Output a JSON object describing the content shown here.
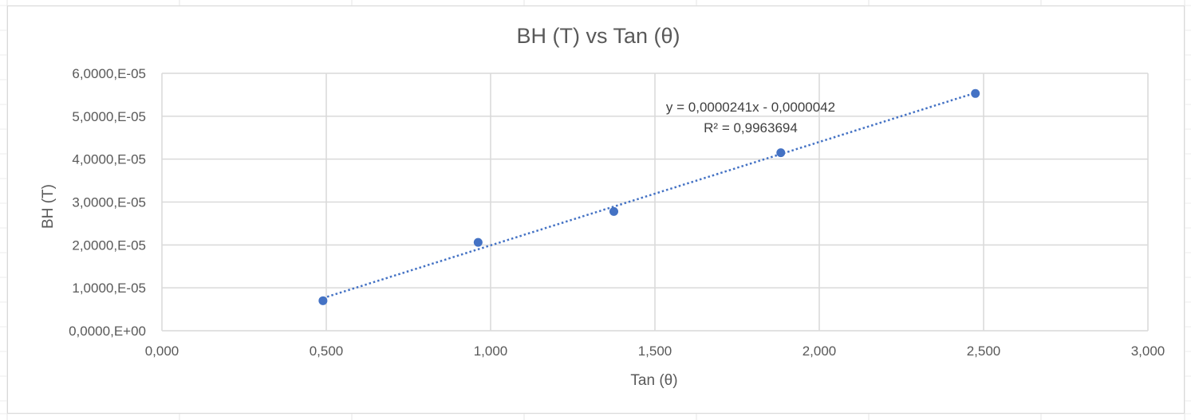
{
  "chart_data": {
    "type": "scatter",
    "title": "BH (T) vs Tan (θ)",
    "xlabel": "Tan (θ)",
    "ylabel": "BH (T)",
    "xlim": [
      0,
      3
    ],
    "ylim": [
      0,
      6e-05
    ],
    "x_ticks": [
      "0,000",
      "0,500",
      "1,000",
      "1,500",
      "2,000",
      "2,500",
      "3,000"
    ],
    "y_ticks": [
      "0,0000,E+00",
      "1,0000,E-05",
      "2,0000,E-05",
      "3,0000,E-05",
      "4,0000,E-05",
      "5,0000,E-05",
      "6,0000,E-05"
    ],
    "grid": true,
    "series": [
      {
        "name": "BH (T)",
        "color": "#4472c4",
        "x": [
          0.49,
          0.962,
          1.375,
          1.883,
          2.475
        ],
        "y": [
          7e-06,
          2.06e-05,
          2.78e-05,
          4.15e-05,
          5.53e-05
        ]
      }
    ],
    "trendline": {
      "type": "linear",
      "style": "dotted",
      "color": "#4472c4",
      "slope": 2.41e-05,
      "intercept": -4.2e-06,
      "equation": "y = 0,0000241x - 0,0000042",
      "r_squared": "R² = 0,9963694"
    }
  }
}
